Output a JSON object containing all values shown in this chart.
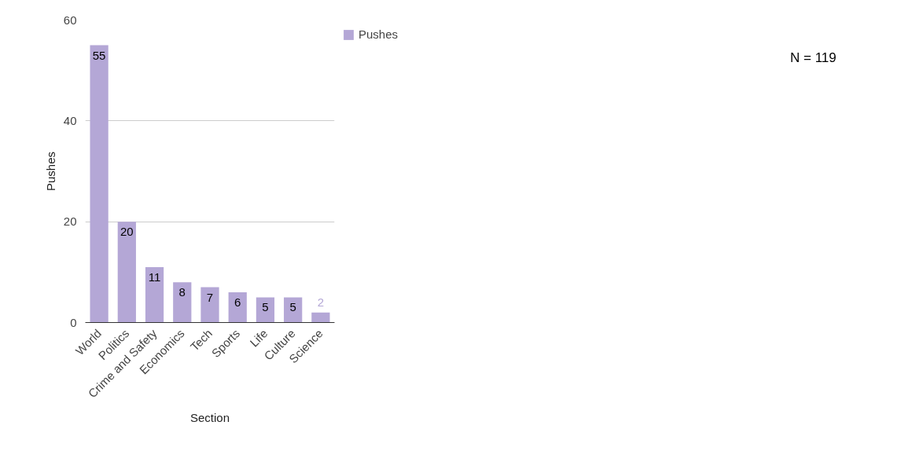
{
  "chart_data": {
    "type": "bar",
    "xlabel": "Section",
    "ylabel": "Pushes",
    "categories": [
      "World",
      "Politics",
      "Crime and Safety",
      "Economics",
      "Tech",
      "Sports",
      "Life",
      "Culture",
      "Science"
    ],
    "series": [
      {
        "name": "Pushes",
        "color": "#b4a7d6",
        "values": [
          55,
          20,
          11,
          8,
          7,
          6,
          5,
          5,
          2
        ]
      }
    ],
    "ylim": [
      0,
      60
    ],
    "yticks": [
      0,
      20,
      40,
      60
    ],
    "grid": "y",
    "legend": "top right",
    "data_labels": true,
    "annotations": [
      "N = 119"
    ]
  }
}
